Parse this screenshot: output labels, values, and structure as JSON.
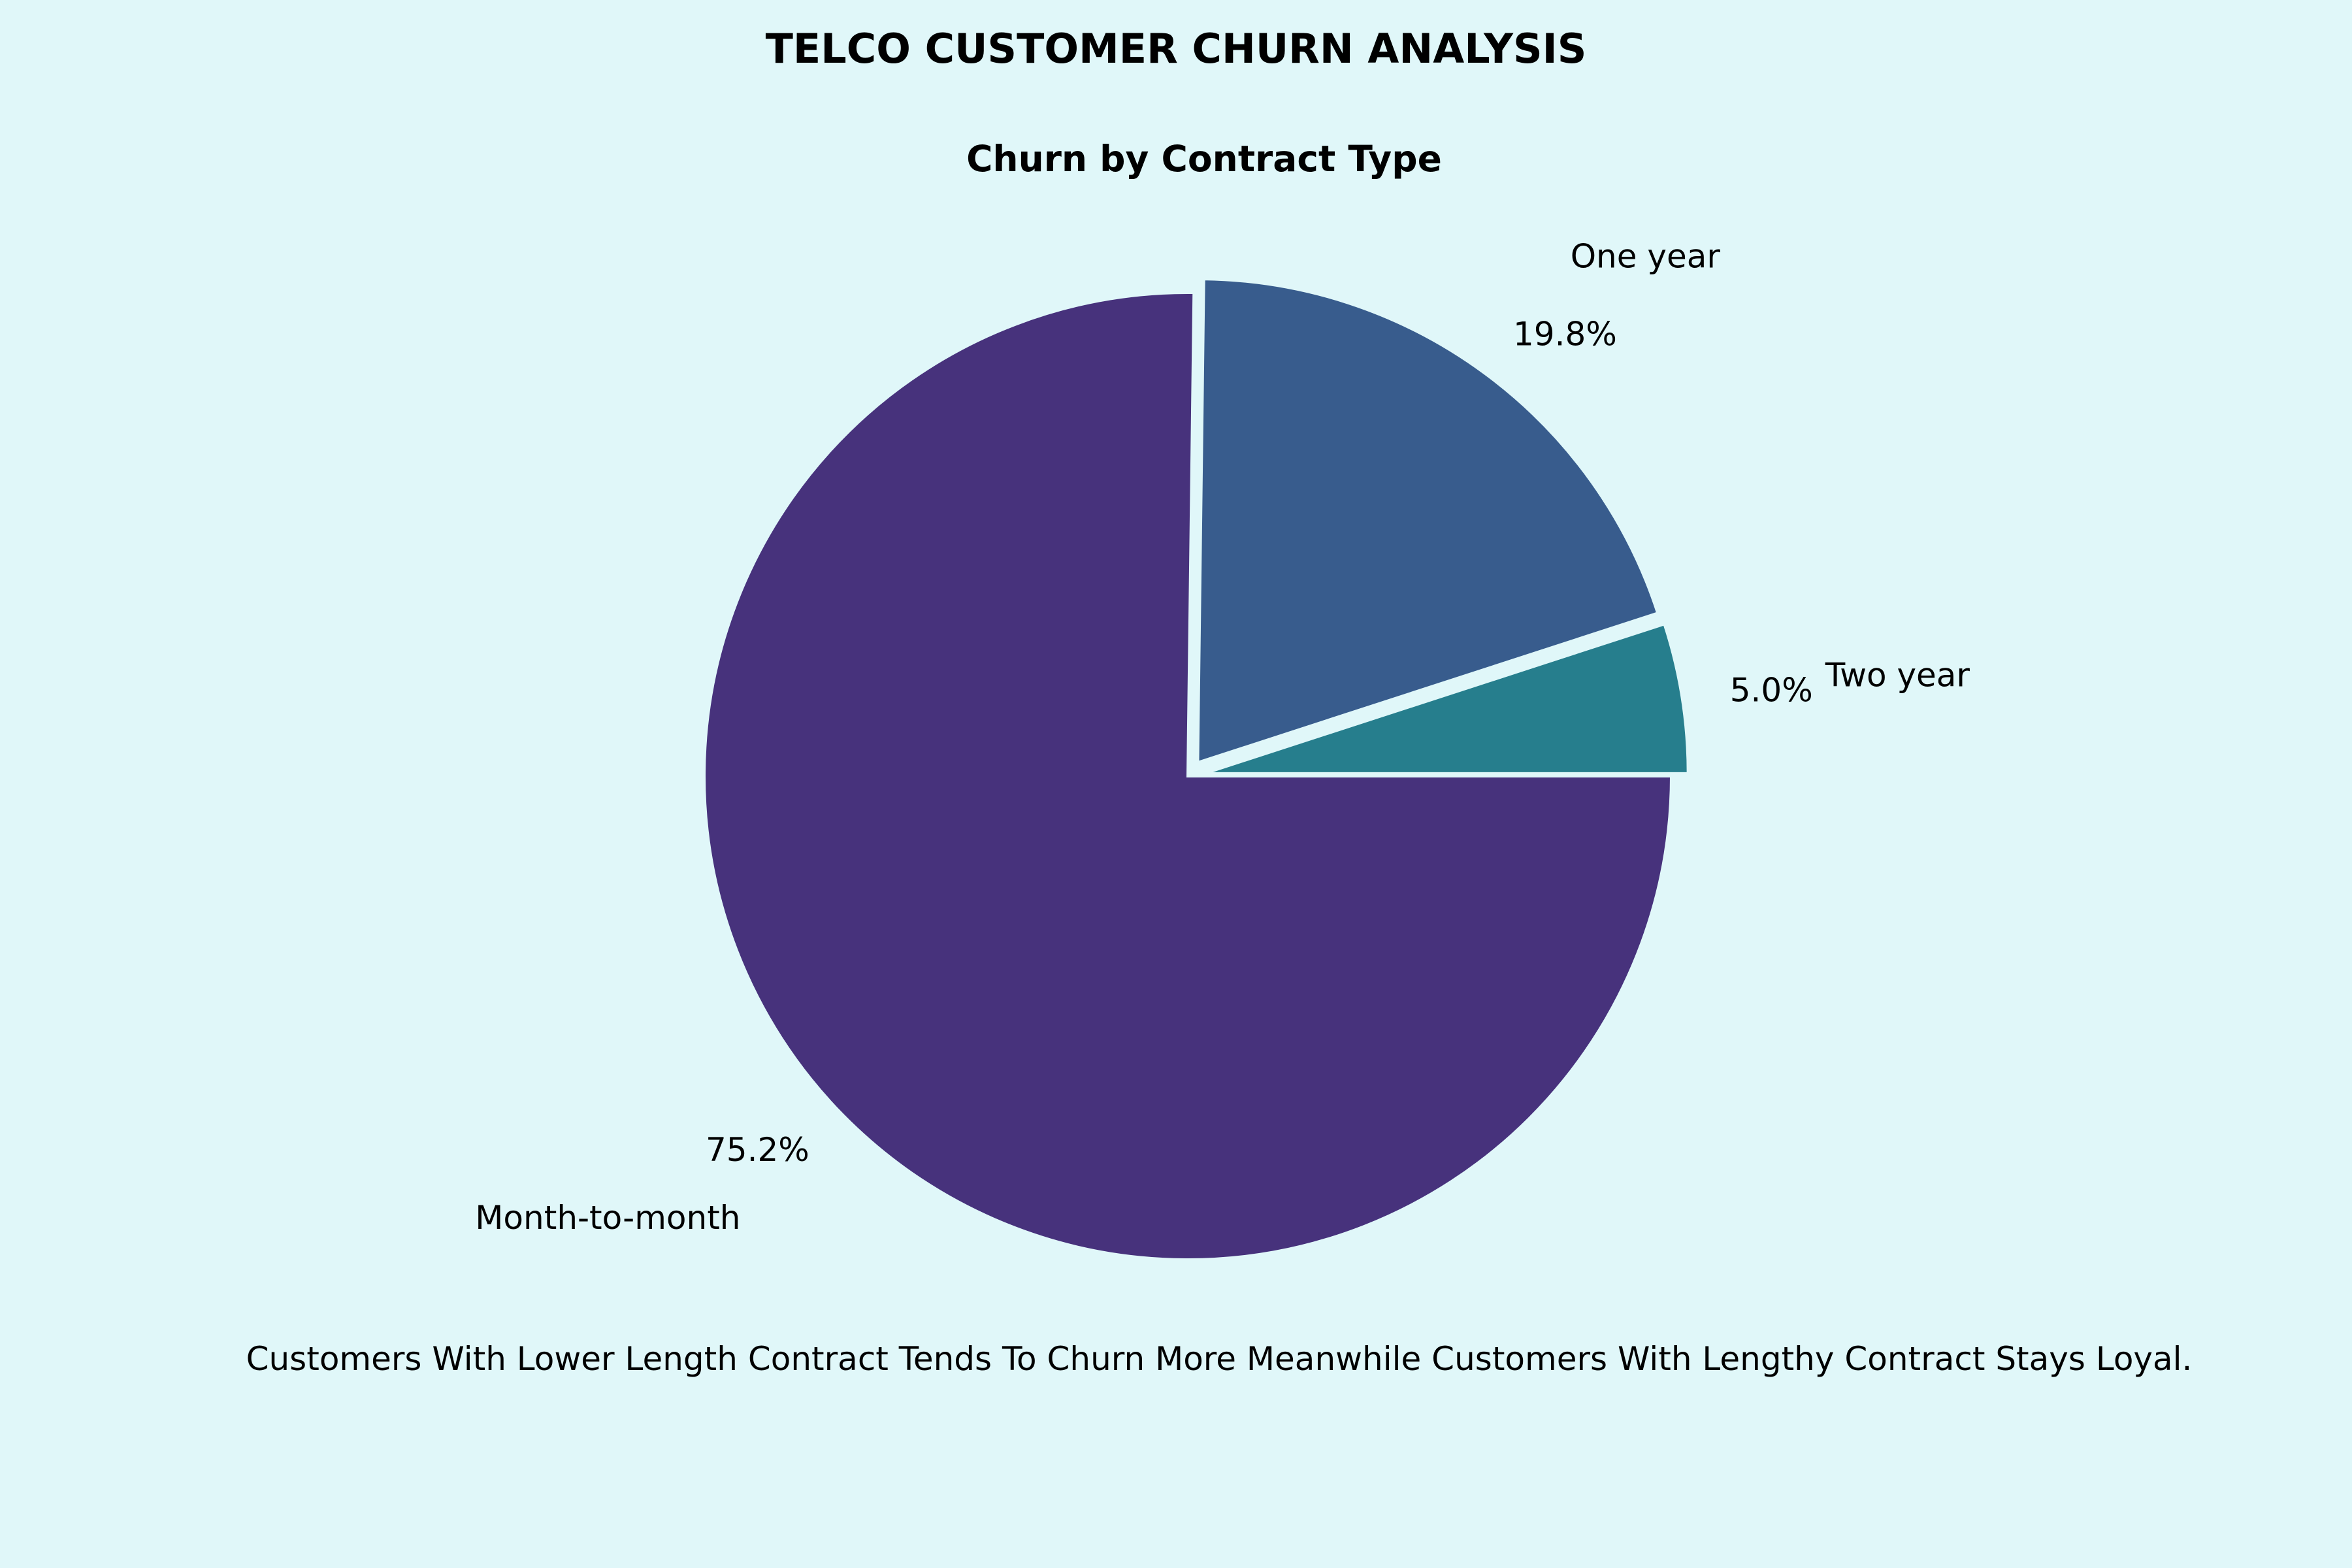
{
  "header": {
    "suptitle": "TELCO CUSTOMER CHURN ANALYSIS"
  },
  "caption": "Customers With Lower Length Contract Tends To Churn More Meanwhile Customers With Lengthy Contract Stays Loyal.",
  "colors": {
    "background": "#e0f7f9",
    "slice_edge": "#e0f7f9"
  },
  "chart_data": {
    "type": "pie",
    "title": "Churn by Contract Type",
    "categories": [
      "Month-to-month",
      "One year",
      "Two year"
    ],
    "values": [
      75.2,
      19.8,
      5.0
    ],
    "percent_labels": [
      "75.2%",
      "19.8%",
      "5.0%"
    ],
    "colors": [
      "#47327c",
      "#385c8d",
      "#267e8d"
    ],
    "exploded": [
      false,
      true,
      true
    ],
    "start_direction": "clockwise from 3 o'clock, largest slice first",
    "legend": "none"
  }
}
